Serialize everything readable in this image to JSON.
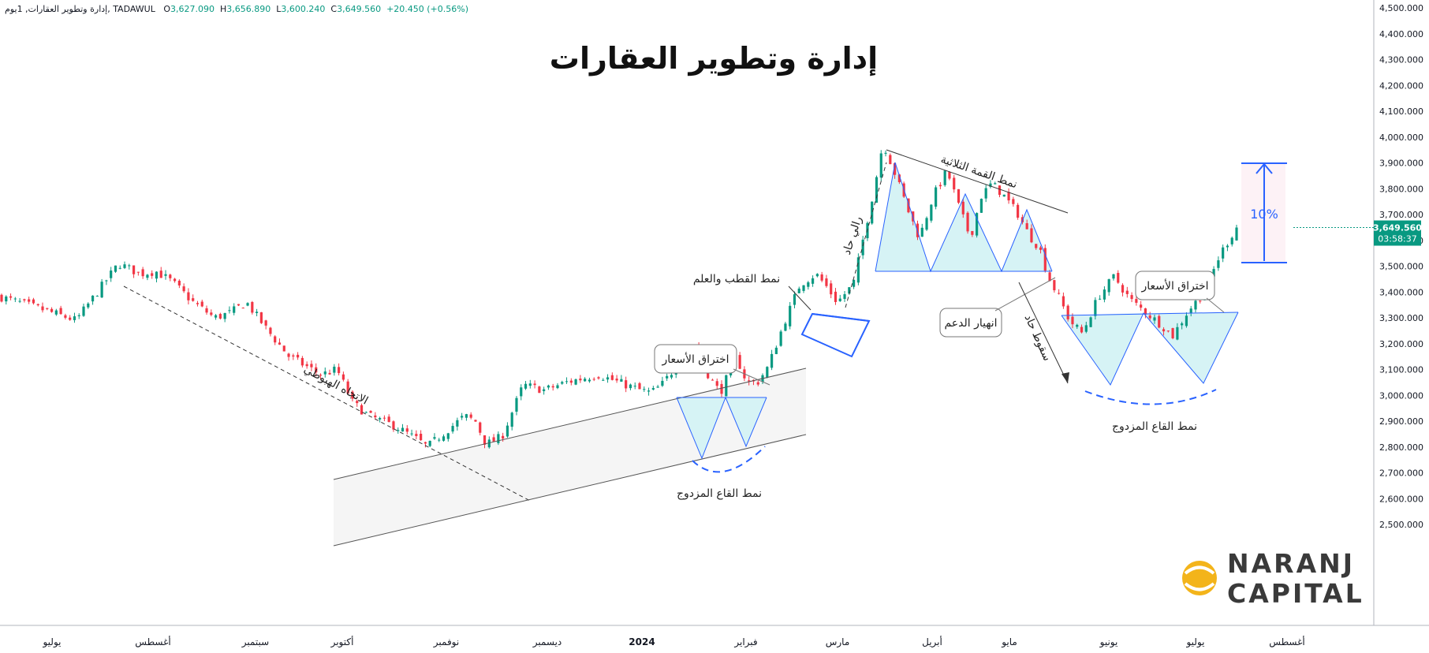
{
  "header": {
    "symbol": "إدارة وتطوير العقارات, 1يوم, TADAWUL",
    "open_label": "O",
    "open": "3,627.090",
    "high_label": "H",
    "high": "3,656.890",
    "low_label": "L",
    "low": "3,600.240",
    "close_label": "C",
    "close": "3,649.560",
    "change": "+20.450 (+0.56%)"
  },
  "title": "إدارة وتطوير العقارات",
  "price_tag": {
    "price": "3,649.560",
    "countdown": "03:58:37"
  },
  "brand": {
    "line1": "NARANJ",
    "line2": "CAPITAL"
  },
  "colors": {
    "up": "#089981",
    "down": "#f23645",
    "accent": "#2962ff",
    "shade": "#d6f3f5"
  },
  "annotations": {
    "downtrend": "الاتجاه الهبوطي",
    "double_bottom_1": "نمط القاع المزدوج",
    "breakout_1": "اختراق الأسعار",
    "flag": "نمط القطب والعلم",
    "rally": "رالي حاد",
    "triple_top": "نمط القمة الثلاثية",
    "support_break": "انهيار الدعم",
    "sharp_drop": "سقوط حاد",
    "double_bottom_2": "نمط القاع المزدوج",
    "breakout_2": "اختراق الأسعار",
    "target": "10%"
  },
  "chart_data": {
    "type": "candlestick",
    "title": "إدارة وتطوير العقارات",
    "y_axis": {
      "ticks": [
        "4,500.000",
        "4,400.000",
        "4,300.000",
        "4,200.000",
        "4,100.000",
        "4,000.000",
        "3,900.000",
        "3,800.000",
        "3,700.000",
        "3,600.000",
        "3,500.000",
        "3,400.000",
        "3,300.000",
        "3,200.000",
        "3,100.000",
        "3,000.000",
        "2,900.000",
        "2,800.000",
        "2,700.000",
        "2,600.000",
        "2,500.000"
      ],
      "range": [
        2420,
        4520
      ],
      "position": "right"
    },
    "x_axis": {
      "labels": [
        "يوليو",
        "أغسطس",
        "سبتمبر",
        "أكتوبر",
        "نوفمبر",
        "ديسمبر",
        "2024",
        "فبراير",
        "مارس",
        "أبريل",
        "مايو",
        "يونيو",
        "يوليو",
        "أغسطس"
      ],
      "bold": [
        "2024"
      ]
    },
    "last_close": 3649.56,
    "close_path": [
      [
        0,
        3380
      ],
      [
        0.04,
        3330
      ],
      [
        0.07,
        3290
      ],
      [
        0.09,
        3400
      ],
      [
        0.11,
        3510
      ],
      [
        0.13,
        3470
      ],
      [
        0.145,
        3480
      ],
      [
        0.16,
        3440
      ],
      [
        0.18,
        3360
      ],
      [
        0.2,
        3300
      ],
      [
        0.215,
        3320
      ],
      [
        0.23,
        3360
      ],
      [
        0.25,
        3250
      ],
      [
        0.27,
        3150
      ],
      [
        0.3,
        3080
      ],
      [
        0.315,
        3100
      ],
      [
        0.33,
        2970
      ],
      [
        0.345,
        2920
      ],
      [
        0.37,
        2880
      ],
      [
        0.39,
        2830
      ],
      [
        0.4,
        2800
      ],
      [
        0.42,
        2870
      ],
      [
        0.435,
        2920
      ],
      [
        0.445,
        2900
      ],
      [
        0.455,
        2810
      ],
      [
        0.47,
        2840
      ],
      [
        0.49,
        3040
      ],
      [
        0.51,
        3020
      ],
      [
        0.53,
        3050
      ],
      [
        0.56,
        3080
      ],
      [
        0.58,
        3050
      ],
      [
        0.6,
        3020
      ],
      [
        0.61,
        3010
      ],
      [
        0.62,
        3040
      ],
      [
        0.635,
        3120
      ],
      [
        0.65,
        3190
      ],
      [
        0.665,
        3070
      ],
      [
        0.675,
        3010
      ],
      [
        0.69,
        3150
      ],
      [
        0.7,
        3050
      ],
      [
        0.71,
        3050
      ],
      [
        0.72,
        3110
      ],
      [
        0.735,
        3280
      ],
      [
        0.75,
        3430
      ],
      [
        0.765,
        3470
      ],
      [
        0.775,
        3420
      ],
      [
        0.785,
        3360
      ],
      [
        0.8,
        3430
      ],
      [
        0.81,
        3620
      ],
      [
        0.82,
        3810
      ],
      [
        0.828,
        3980
      ],
      [
        0.84,
        3850
      ],
      [
        0.852,
        3710
      ],
      [
        0.862,
        3610
      ],
      [
        0.875,
        3770
      ],
      [
        0.888,
        3870
      ],
      [
        0.9,
        3720
      ],
      [
        0.91,
        3610
      ],
      [
        0.92,
        3770
      ],
      [
        0.93,
        3820
      ],
      [
        0.94,
        3780
      ],
      [
        0.955,
        3700
      ],
      [
        0.965,
        3620
      ],
      [
        0.975,
        3570
      ],
      [
        0.983,
        3460
      ],
      [
        0.993,
        3380
      ],
      [
        1.003,
        3290
      ],
      [
        1.015,
        3240
      ],
      [
        1.03,
        3380
      ],
      [
        1.045,
        3460
      ],
      [
        1.06,
        3370
      ],
      [
        1.075,
        3320
      ],
      [
        1.09,
        3270
      ],
      [
        1.1,
        3230
      ],
      [
        1.115,
        3330
      ],
      [
        1.13,
        3400
      ],
      [
        1.145,
        3550
      ],
      [
        1.16,
        3650
      ]
    ]
  }
}
